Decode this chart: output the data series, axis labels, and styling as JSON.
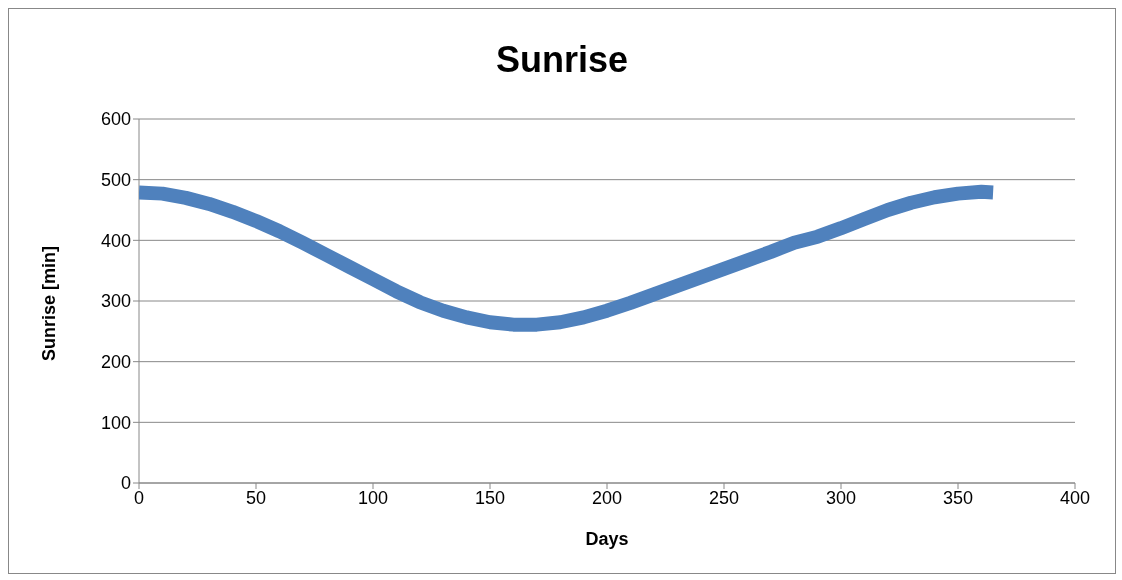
{
  "chart_data": {
    "type": "line",
    "title": "Sunrise",
    "xlabel": "Days",
    "ylabel": "Sunrise [min]",
    "series": [
      {
        "color": "#4f81bd",
        "x": [
          0,
          10,
          20,
          30,
          40,
          50,
          60,
          70,
          80,
          90,
          100,
          110,
          120,
          130,
          140,
          150,
          160,
          170,
          180,
          190,
          200,
          210,
          220,
          230,
          240,
          250,
          260,
          270,
          280,
          290,
          300,
          310,
          320,
          330,
          340,
          350,
          360,
          365
        ],
        "values": [
          479,
          477,
          470,
          460,
          447,
          432,
          415,
          396,
          376,
          356,
          336,
          316,
          298,
          284,
          273,
          265,
          261,
          261,
          265,
          273,
          284,
          297,
          311,
          325,
          339,
          353,
          367,
          381,
          396,
          406,
          420,
          435,
          450,
          462,
          471,
          477,
          480,
          479
        ]
      }
    ],
    "xlim": [
      0,
      400
    ],
    "xticks": [
      0,
      50,
      100,
      150,
      200,
      250,
      300,
      350,
      400
    ],
    "ylim": [
      0,
      600
    ],
    "yticks": [
      0,
      100,
      200,
      300,
      400,
      500,
      600
    ],
    "grid": "y",
    "marker": "none",
    "legend": false
  }
}
